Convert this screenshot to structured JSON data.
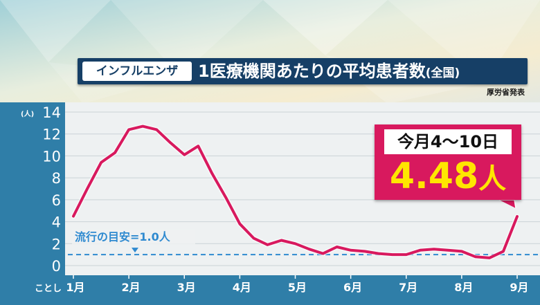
{
  "header": {
    "tag": "インフルエンザ",
    "title_main": "1医療機関あたりの平均患者数",
    "title_sub": "(全国)",
    "source": "厚労省発表"
  },
  "callout": {
    "period": "今月4～10日",
    "value": "4.48",
    "unit": "人"
  },
  "colors": {
    "axis_band": "#2f7ea8",
    "line": "#d8195e",
    "threshold": "#2f8ad0",
    "title_bar": "#163f66",
    "callout_value": "#ffe600"
  },
  "chart_data": {
    "type": "line",
    "title": "インフルエンザ 1医療機関あたりの平均患者数(全国)",
    "ylabel": "(人)",
    "ylim": [
      0,
      14
    ],
    "yticks": [
      0,
      2,
      4,
      6,
      8,
      10,
      12,
      14
    ],
    "grid": true,
    "x_origin_label": "ことし",
    "month_labels": [
      "1月",
      "2月",
      "3月",
      "4月",
      "5月",
      "6月",
      "7月",
      "8月",
      "9月"
    ],
    "threshold": {
      "label": "流行の目安=1.0人",
      "value": 1.0
    },
    "series": [
      {
        "x": [
          "1月1週",
          "1月2週",
          "1月3週",
          "1月4週",
          "2月1週",
          "2月2週",
          "2月3週",
          "2月4週",
          "3月1週",
          "3月2週",
          "3月3週",
          "3月4週",
          "4月1週",
          "4月2週",
          "4月3週",
          "4月4週",
          "5月1週",
          "5月2週",
          "5月3週",
          "5月4週",
          "6月1週",
          "6月2週",
          "6月3週",
          "6月4週",
          "7月1週",
          "7月2週",
          "7月3週",
          "7月4週",
          "8月1週",
          "8月2週",
          "8月3週",
          "8月4週",
          "9月1週"
        ],
        "values": [
          4.5,
          7.0,
          9.4,
          10.3,
          12.4,
          12.7,
          12.4,
          11.2,
          10.1,
          10.9,
          8.4,
          6.2,
          3.8,
          2.5,
          1.9,
          2.3,
          2.0,
          1.5,
          1.1,
          1.7,
          1.4,
          1.3,
          1.1,
          1.0,
          1.0,
          1.4,
          1.5,
          1.4,
          1.3,
          0.8,
          0.7,
          1.3,
          4.48
        ]
      }
    ]
  }
}
